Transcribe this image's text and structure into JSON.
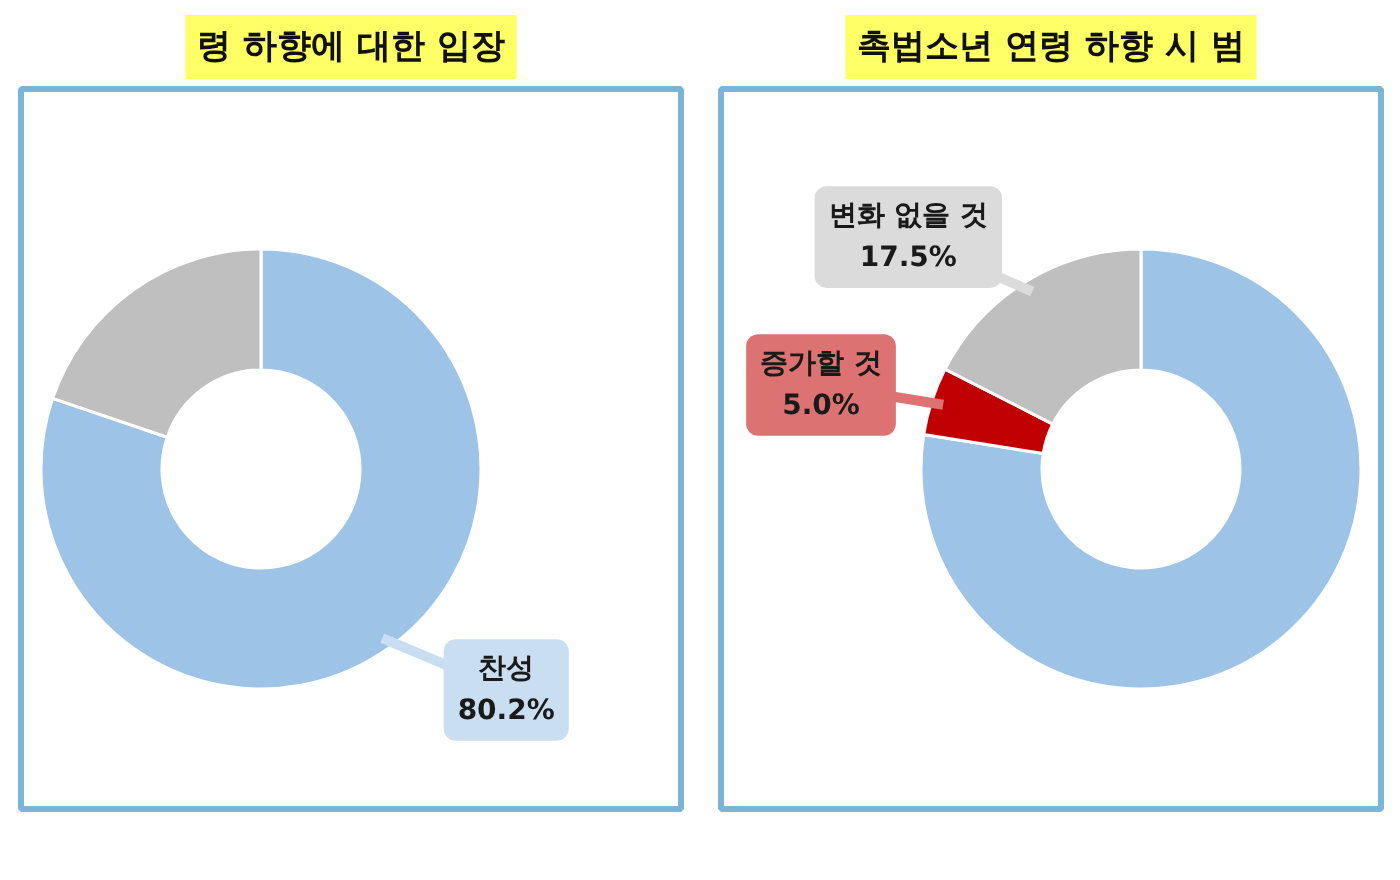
{
  "chart_data": [
    {
      "type": "donut",
      "title": "령 하향에 대한 입장",
      "categories": [
        "찬성",
        null
      ],
      "values": [
        80.2,
        19.8
      ],
      "colors": [
        "#9dc3e6",
        "#bfbfbf"
      ],
      "value_labels": [
        "80.2%",
        null
      ]
    },
    {
      "type": "donut",
      "title": "촉법소년 연령 하향 시 범",
      "categories": [
        null,
        "증가할 것",
        "변화 없을 것"
      ],
      "values": [
        77.5,
        5.0,
        17.5
      ],
      "colors": [
        "#9dc3e6",
        "#c00000",
        "#bfbfbf"
      ],
      "value_labels": [
        null,
        "5.0%",
        "17.5%"
      ]
    }
  ]
}
